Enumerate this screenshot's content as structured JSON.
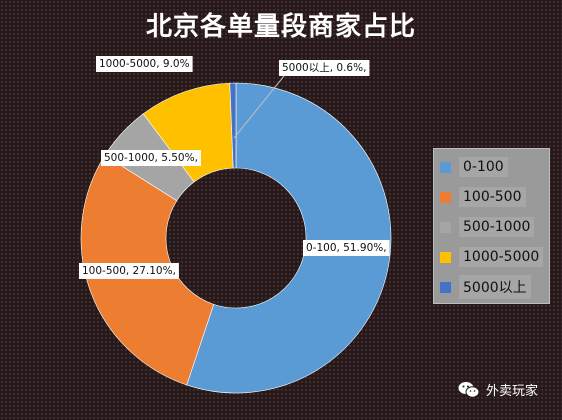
{
  "chart_data": {
    "type": "pie",
    "title": "北京各单量段商家占比",
    "categories": [
      "0-100",
      "100-500",
      "500-1000",
      "1000-5000",
      "5000以上"
    ],
    "values": [
      51.9,
      27.1,
      5.5,
      9.0,
      0.6
    ],
    "data_labels": [
      "0-100, 51.90%,",
      "100-500, 27.10%,",
      "500-1000, 5.50%,",
      "1000-5000, 9.0%",
      "5000以上, 0.6%,"
    ],
    "colors": [
      "#5b9bd5",
      "#ed7d31",
      "#a5a5a5",
      "#ffc000",
      "#4472c4"
    ],
    "legend_position": "right",
    "style": "doughnut"
  },
  "watermark": {
    "text": "外卖玩家",
    "icon": "wechat-icon"
  }
}
